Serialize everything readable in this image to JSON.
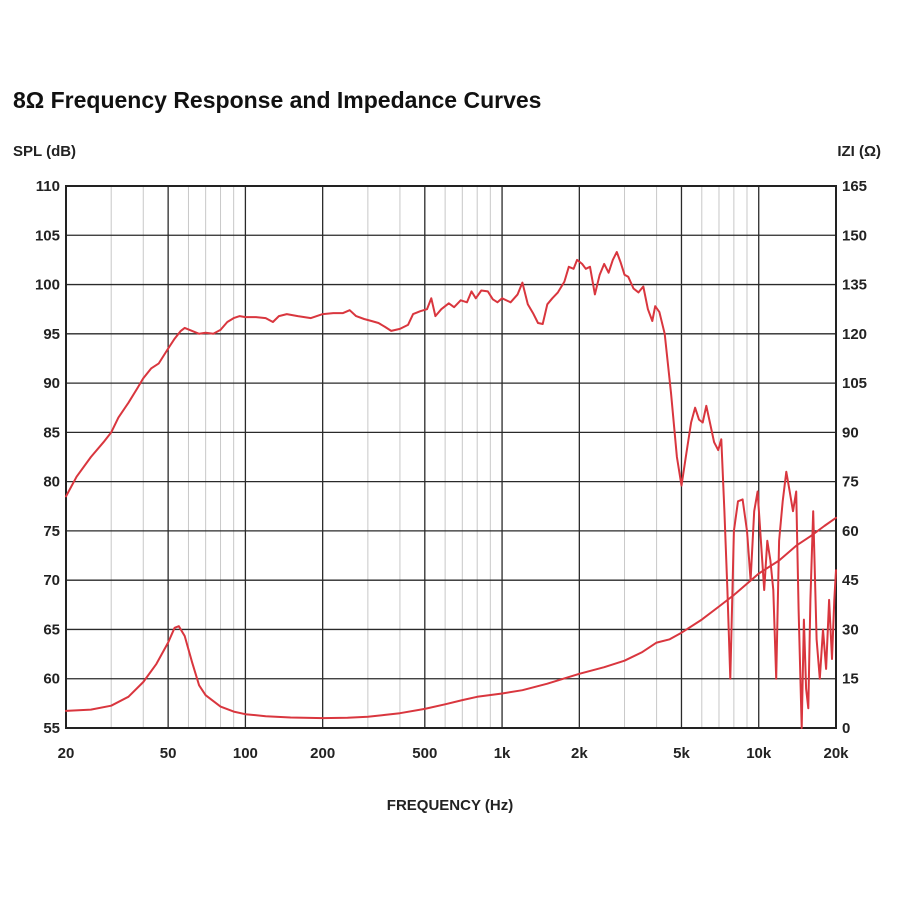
{
  "chart_data": {
    "type": "line",
    "title": "8Ω Frequency Response and Impedance Curves",
    "xlabel": "FREQUENCY (Hz)",
    "ylabel_left": "SPL (dB)",
    "ylabel_right": "IZI (Ω)",
    "xscale": "log",
    "xlim": [
      20,
      20000
    ],
    "ylim_left": [
      55,
      110
    ],
    "ylim_right": [
      0,
      165
    ],
    "grid": true,
    "x_ticks": [
      {
        "value": 20,
        "label": "20"
      },
      {
        "value": 50,
        "label": "50"
      },
      {
        "value": 100,
        "label": "100"
      },
      {
        "value": 200,
        "label": "200"
      },
      {
        "value": 500,
        "label": "500"
      },
      {
        "value": 1000,
        "label": "1k"
      },
      {
        "value": 2000,
        "label": "2k"
      },
      {
        "value": 5000,
        "label": "5k"
      },
      {
        "value": 10000,
        "label": "10k"
      },
      {
        "value": 20000,
        "label": "20k"
      }
    ],
    "y_ticks_left": [
      {
        "value": 110,
        "label": "110"
      },
      {
        "value": 105,
        "label": "105"
      },
      {
        "value": 100,
        "label": "100"
      },
      {
        "value": 95,
        "label": "95"
      },
      {
        "value": 90,
        "label": "90"
      },
      {
        "value": 85,
        "label": "85"
      },
      {
        "value": 80,
        "label": "80"
      },
      {
        "value": 75,
        "label": "75"
      },
      {
        "value": 70,
        "label": "70"
      },
      {
        "value": 65,
        "label": "65"
      },
      {
        "value": 60,
        "label": "60"
      },
      {
        "value": 55,
        "label": "55"
      }
    ],
    "y_ticks_right": [
      {
        "value": 165,
        "label": "165"
      },
      {
        "value": 150,
        "label": "150"
      },
      {
        "value": 135,
        "label": "135"
      },
      {
        "value": 120,
        "label": "120"
      },
      {
        "value": 105,
        "label": "105"
      },
      {
        "value": 90,
        "label": "90"
      },
      {
        "value": 75,
        "label": "75"
      },
      {
        "value": 60,
        "label": "60"
      },
      {
        "value": 45,
        "label": "45"
      },
      {
        "value": 30,
        "label": "30"
      },
      {
        "value": 15,
        "label": "15"
      },
      {
        "value": 0,
        "label": "0"
      }
    ],
    "colors": {
      "curve": "#d9363e",
      "grid": "#c8c8c8",
      "major_grid": "#2a2a2a",
      "frame": "#222222"
    },
    "series": [
      {
        "name": "Frequency Response",
        "axis": "left",
        "points": [
          [
            20,
            78.5
          ],
          [
            22,
            80.5
          ],
          [
            25,
            82.5
          ],
          [
            28,
            84
          ],
          [
            30,
            85
          ],
          [
            32,
            86.5
          ],
          [
            35,
            88
          ],
          [
            38,
            89.5
          ],
          [
            40,
            90.5
          ],
          [
            43,
            91.5
          ],
          [
            46,
            92
          ],
          [
            50,
            93.5
          ],
          [
            53,
            94.5
          ],
          [
            56,
            95.3
          ],
          [
            58,
            95.6
          ],
          [
            62,
            95.3
          ],
          [
            66,
            95
          ],
          [
            70,
            95.1
          ],
          [
            75,
            95
          ],
          [
            80,
            95.4
          ],
          [
            85,
            96.2
          ],
          [
            90,
            96.6
          ],
          [
            95,
            96.8
          ],
          [
            100,
            96.7
          ],
          [
            110,
            96.7
          ],
          [
            120,
            96.6
          ],
          [
            128,
            96.2
          ],
          [
            135,
            96.8
          ],
          [
            145,
            97
          ],
          [
            160,
            96.8
          ],
          [
            180,
            96.6
          ],
          [
            200,
            97
          ],
          [
            220,
            97.1
          ],
          [
            240,
            97.1
          ],
          [
            255,
            97.4
          ],
          [
            270,
            96.8
          ],
          [
            290,
            96.5
          ],
          [
            310,
            96.3
          ],
          [
            330,
            96.1
          ],
          [
            350,
            95.7
          ],
          [
            370,
            95.3
          ],
          [
            400,
            95.5
          ],
          [
            430,
            95.9
          ],
          [
            450,
            97
          ],
          [
            480,
            97.3
          ],
          [
            510,
            97.5
          ],
          [
            530,
            98.6
          ],
          [
            550,
            96.8
          ],
          [
            580,
            97.5
          ],
          [
            620,
            98.1
          ],
          [
            650,
            97.7
          ],
          [
            690,
            98.4
          ],
          [
            730,
            98.2
          ],
          [
            760,
            99.3
          ],
          [
            790,
            98.6
          ],
          [
            830,
            99.4
          ],
          [
            880,
            99.3
          ],
          [
            920,
            98.5
          ],
          [
            960,
            98.2
          ],
          [
            1000,
            98.6
          ],
          [
            1080,
            98.2
          ],
          [
            1150,
            99
          ],
          [
            1200,
            100.2
          ],
          [
            1260,
            98
          ],
          [
            1320,
            97.1
          ],
          [
            1380,
            96.1
          ],
          [
            1440,
            96
          ],
          [
            1500,
            98
          ],
          [
            1570,
            98.6
          ],
          [
            1650,
            99.2
          ],
          [
            1750,
            100.3
          ],
          [
            1820,
            101.8
          ],
          [
            1900,
            101.6
          ],
          [
            1960,
            102.5
          ],
          [
            2050,
            102.1
          ],
          [
            2120,
            101.6
          ],
          [
            2200,
            101.8
          ],
          [
            2300,
            99
          ],
          [
            2400,
            101
          ],
          [
            2500,
            102.1
          ],
          [
            2600,
            101.2
          ],
          [
            2700,
            102.5
          ],
          [
            2800,
            103.3
          ],
          [
            2900,
            102.2
          ],
          [
            3000,
            101
          ],
          [
            3100,
            100.8
          ],
          [
            3250,
            99.6
          ],
          [
            3400,
            99.2
          ],
          [
            3550,
            99.8
          ],
          [
            3700,
            97.5
          ],
          [
            3850,
            96.3
          ],
          [
            3950,
            97.8
          ],
          [
            4100,
            97.2
          ],
          [
            4300,
            95
          ],
          [
            4550,
            89
          ],
          [
            4800,
            82.5
          ],
          [
            5000,
            79.6
          ],
          [
            5200,
            82.5
          ],
          [
            5450,
            86
          ],
          [
            5650,
            87.5
          ],
          [
            5850,
            86.3
          ],
          [
            6050,
            86
          ],
          [
            6250,
            87.7
          ],
          [
            6450,
            86
          ],
          [
            6700,
            84
          ],
          [
            6950,
            83.2
          ],
          [
            7150,
            84.3
          ],
          [
            7350,
            77
          ],
          [
            7550,
            69
          ],
          [
            7750,
            60
          ],
          [
            8000,
            75
          ],
          [
            8300,
            78
          ],
          [
            8650,
            78.2
          ],
          [
            9000,
            75
          ],
          [
            9300,
            70
          ],
          [
            9600,
            77
          ],
          [
            9900,
            79
          ],
          [
            10200,
            74
          ],
          [
            10500,
            69
          ],
          [
            10800,
            74
          ],
          [
            11100,
            72
          ],
          [
            11400,
            69
          ],
          [
            11700,
            60
          ],
          [
            12000,
            74
          ],
          [
            12400,
            78
          ],
          [
            12800,
            81
          ],
          [
            13200,
            79
          ],
          [
            13600,
            77
          ],
          [
            14000,
            79
          ],
          [
            14300,
            67
          ],
          [
            14700,
            55
          ],
          [
            15000,
            66
          ],
          [
            15300,
            59
          ],
          [
            15600,
            57
          ],
          [
            15900,
            68
          ],
          [
            16300,
            77
          ],
          [
            16800,
            64
          ],
          [
            17300,
            60
          ],
          [
            17800,
            65
          ],
          [
            18300,
            61
          ],
          [
            18800,
            68
          ],
          [
            19300,
            62
          ],
          [
            19700,
            68
          ],
          [
            20000,
            71
          ]
        ]
      },
      {
        "name": "Impedance",
        "axis": "right",
        "points": [
          [
            20,
            5.2
          ],
          [
            25,
            5.6
          ],
          [
            30,
            6.8
          ],
          [
            35,
            9.5
          ],
          [
            40,
            14
          ],
          [
            45,
            19.5
          ],
          [
            50,
            26
          ],
          [
            53,
            30.5
          ],
          [
            55,
            31
          ],
          [
            58,
            28
          ],
          [
            62,
            20
          ],
          [
            66,
            13
          ],
          [
            70,
            10
          ],
          [
            80,
            6.5
          ],
          [
            90,
            5
          ],
          [
            100,
            4.2
          ],
          [
            120,
            3.6
          ],
          [
            150,
            3.2
          ],
          [
            200,
            3
          ],
          [
            250,
            3.1
          ],
          [
            300,
            3.4
          ],
          [
            350,
            4
          ],
          [
            400,
            4.5
          ],
          [
            500,
            5.8
          ],
          [
            600,
            7.2
          ],
          [
            700,
            8.5
          ],
          [
            800,
            9.5
          ],
          [
            1000,
            10.5
          ],
          [
            1200,
            11.5
          ],
          [
            1500,
            13.5
          ],
          [
            2000,
            16.5
          ],
          [
            2500,
            18.5
          ],
          [
            3000,
            20.5
          ],
          [
            3500,
            23
          ],
          [
            4000,
            26
          ],
          [
            4500,
            27
          ],
          [
            5000,
            29
          ],
          [
            6000,
            33
          ],
          [
            7000,
            37
          ],
          [
            8000,
            40.5
          ],
          [
            10000,
            47
          ],
          [
            12000,
            51
          ],
          [
            14000,
            55.5
          ],
          [
            16000,
            58.5
          ],
          [
            18000,
            61.5
          ],
          [
            20000,
            64
          ]
        ]
      }
    ]
  }
}
